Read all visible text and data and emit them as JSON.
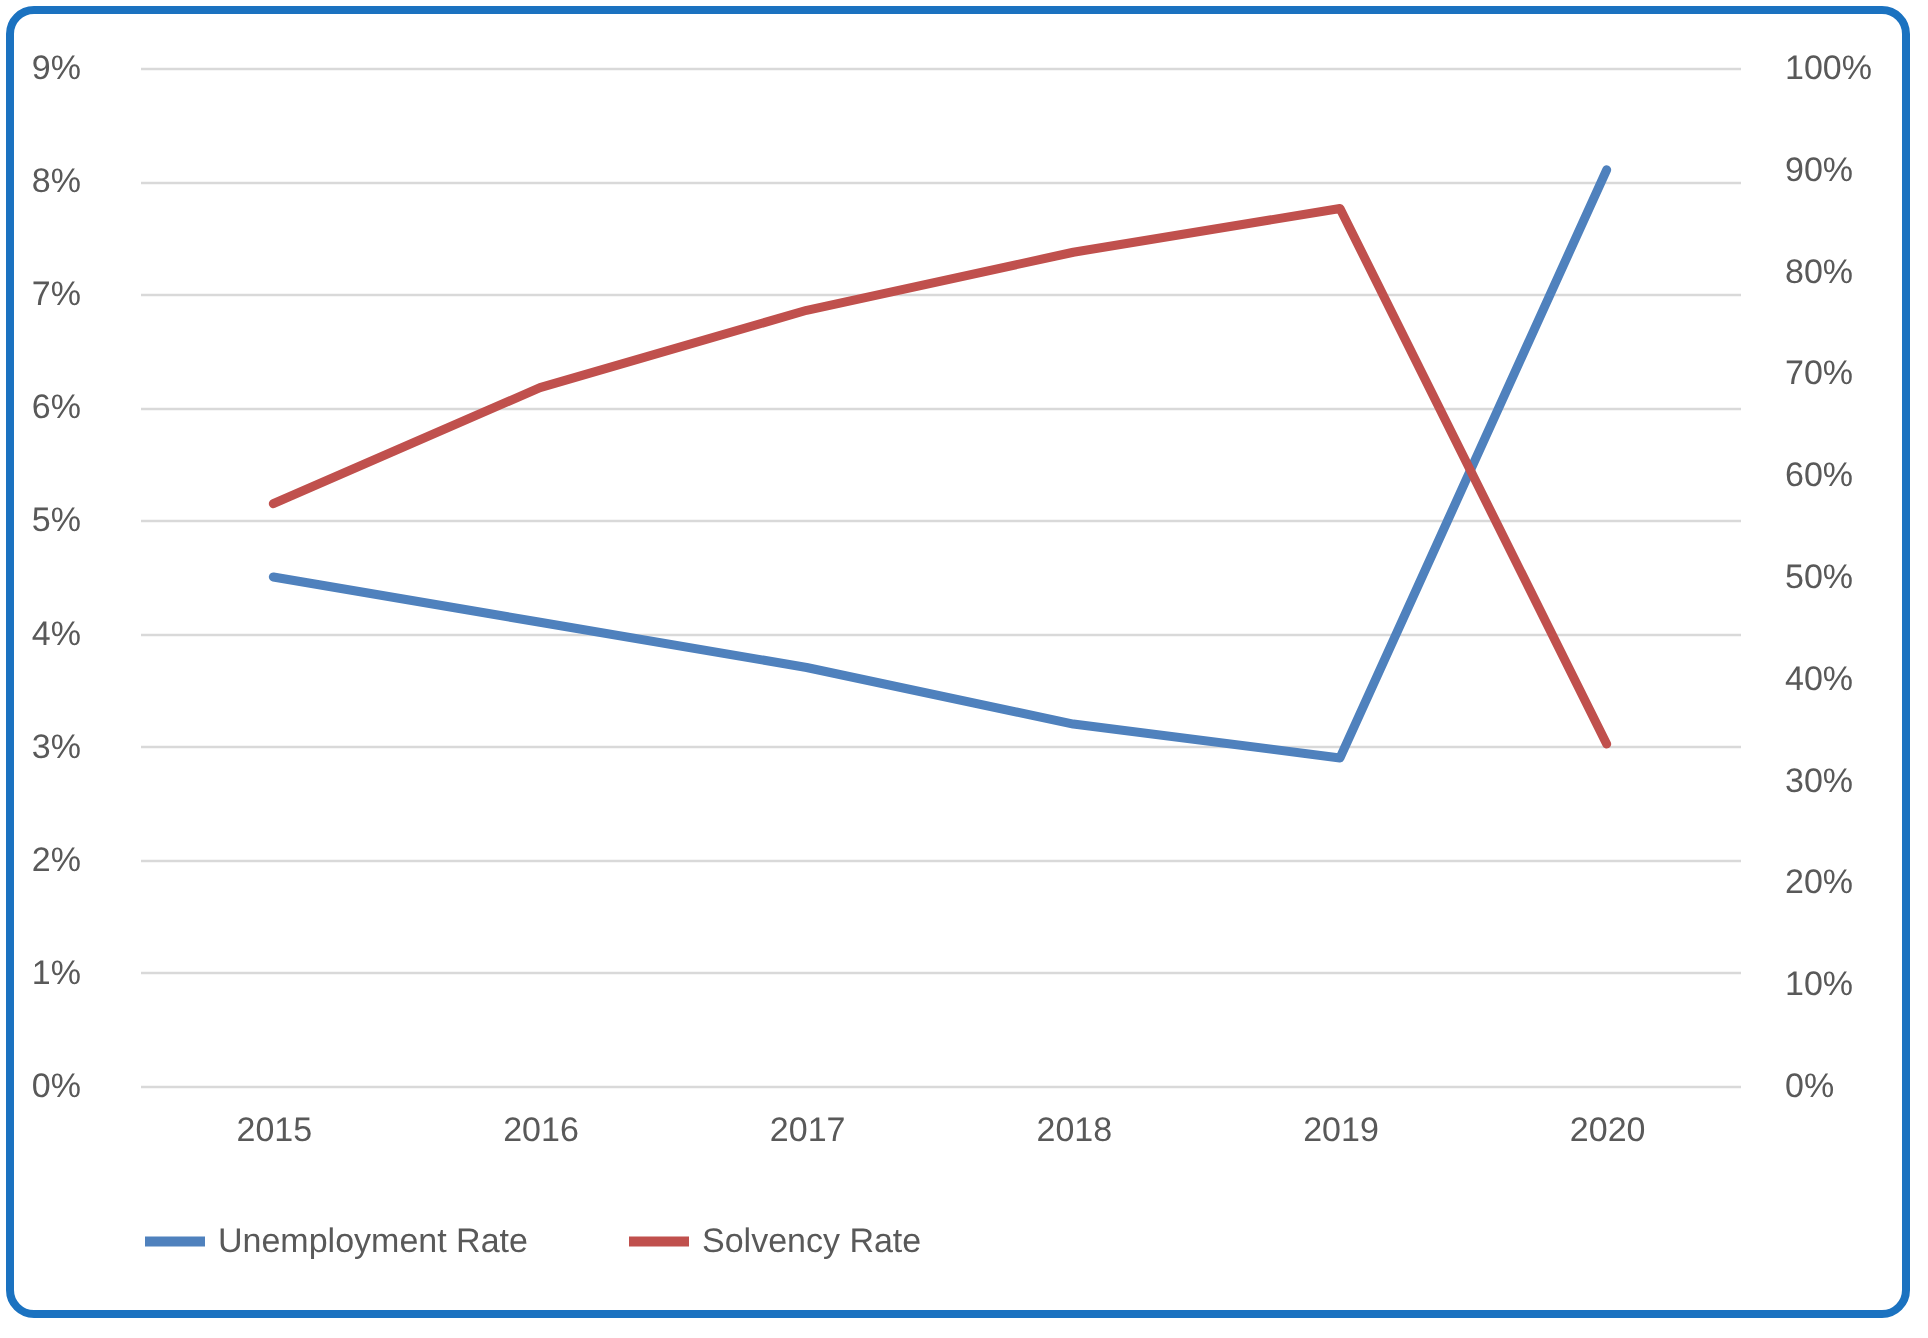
{
  "chart_data": {
    "type": "line",
    "categories": [
      "2015",
      "2016",
      "2017",
      "2018",
      "2019",
      "2020"
    ],
    "series": [
      {
        "name": "Unemployment Rate",
        "color": "#4f81bd",
        "values": [
          4.5,
          4.1,
          3.7,
          3.2,
          2.9,
          8.1
        ]
      },
      {
        "name": "Solvency Rate",
        "color": "#c0504d",
        "axis": "y2",
        "values": [
          57.2,
          68.6,
          76.2,
          81.9,
          86.2,
          33.6
        ]
      }
    ],
    "ylim": [
      0,
      9
    ],
    "yticks": [
      {
        "value": 0,
        "label": "0%"
      },
      {
        "value": 1,
        "label": "1%"
      },
      {
        "value": 2,
        "label": "2%"
      },
      {
        "value": 3,
        "label": "3%"
      },
      {
        "value": 4,
        "label": "4%"
      },
      {
        "value": 5,
        "label": "5%"
      },
      {
        "value": 6,
        "label": "6%"
      },
      {
        "value": 7,
        "label": "7%"
      },
      {
        "value": 8,
        "label": "8%"
      },
      {
        "value": 9,
        "label": "9%"
      }
    ],
    "y2lim": [
      0,
      100
    ],
    "y2ticks": [
      {
        "value": 0,
        "label": "0%"
      },
      {
        "value": 10,
        "label": "10%"
      },
      {
        "value": 20,
        "label": "20%"
      },
      {
        "value": 30,
        "label": "30%"
      },
      {
        "value": 40,
        "label": "40%"
      },
      {
        "value": 50,
        "label": "50%"
      },
      {
        "value": 60,
        "label": "60%"
      },
      {
        "value": 70,
        "label": "70%"
      },
      {
        "value": 80,
        "label": "80%"
      },
      {
        "value": 90,
        "label": "90%"
      },
      {
        "value": 100,
        "label": "100%"
      }
    ],
    "grid": "y",
    "legend": "bottom",
    "marker": "none",
    "line_style": "solid"
  }
}
